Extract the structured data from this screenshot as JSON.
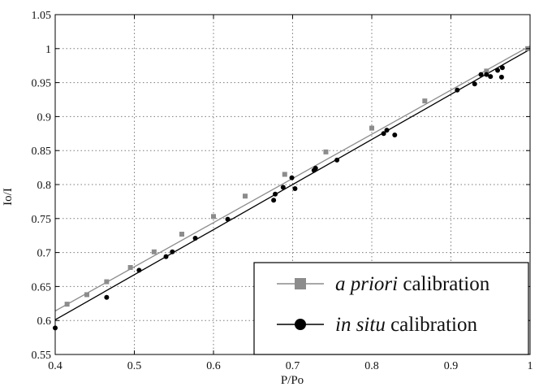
{
  "chart_data": {
    "type": "scatter",
    "title": "",
    "xlabel": "P/Po",
    "ylabel": "Io/I",
    "xlim": [
      0.4,
      1.0
    ],
    "ylim": [
      0.55,
      1.05
    ],
    "xticks": [
      "0.4",
      "0.5",
      "0.6",
      "0.7",
      "0.8",
      "0.9",
      "1"
    ],
    "yticks": [
      "0.55",
      "0.6",
      "0.65",
      "0.7",
      "0.75",
      "0.8",
      "0.85",
      "0.9",
      "0.95",
      "1",
      "1.05"
    ],
    "grid": true,
    "legend_position": "bottom-right",
    "series": [
      {
        "name_prefix": "a priori",
        "name_suffix": " calibration",
        "marker": "square",
        "color": "#8c8c8c",
        "points": [
          [
            0.415,
            0.624
          ],
          [
            0.44,
            0.638
          ],
          [
            0.465,
            0.657
          ],
          [
            0.495,
            0.678
          ],
          [
            0.525,
            0.701
          ],
          [
            0.56,
            0.727
          ],
          [
            0.6,
            0.753
          ],
          [
            0.64,
            0.783
          ],
          [
            0.69,
            0.815
          ],
          [
            0.742,
            0.848
          ],
          [
            0.8,
            0.883
          ],
          [
            0.867,
            0.923
          ],
          [
            0.945,
            0.967
          ],
          [
            0.997,
            1.0
          ]
        ],
        "fit": [
          [
            0.4,
            0.614
          ],
          [
            1.0,
            1.004
          ]
        ]
      },
      {
        "name_prefix": "in situ",
        "name_suffix": " calibration",
        "marker": "circle",
        "color": "#000000",
        "points": [
          [
            0.4,
            0.589
          ],
          [
            0.465,
            0.634
          ],
          [
            0.506,
            0.674
          ],
          [
            0.54,
            0.694
          ],
          [
            0.548,
            0.701
          ],
          [
            0.577,
            0.721
          ],
          [
            0.618,
            0.749
          ],
          [
            0.676,
            0.777
          ],
          [
            0.678,
            0.786
          ],
          [
            0.688,
            0.796
          ],
          [
            0.699,
            0.81
          ],
          [
            0.703,
            0.794
          ],
          [
            0.727,
            0.821
          ],
          [
            0.729,
            0.824
          ],
          [
            0.756,
            0.836
          ],
          [
            0.815,
            0.875
          ],
          [
            0.819,
            0.88
          ],
          [
            0.829,
            0.873
          ],
          [
            0.908,
            0.939
          ],
          [
            0.93,
            0.948
          ],
          [
            0.938,
            0.962
          ],
          [
            0.945,
            0.962
          ],
          [
            0.95,
            0.959
          ],
          [
            0.959,
            0.968
          ],
          [
            0.964,
            0.958
          ],
          [
            0.965,
            0.972
          ]
        ],
        "fit": [
          [
            0.4,
            0.601
          ],
          [
            1.0,
            0.999
          ]
        ]
      }
    ]
  }
}
